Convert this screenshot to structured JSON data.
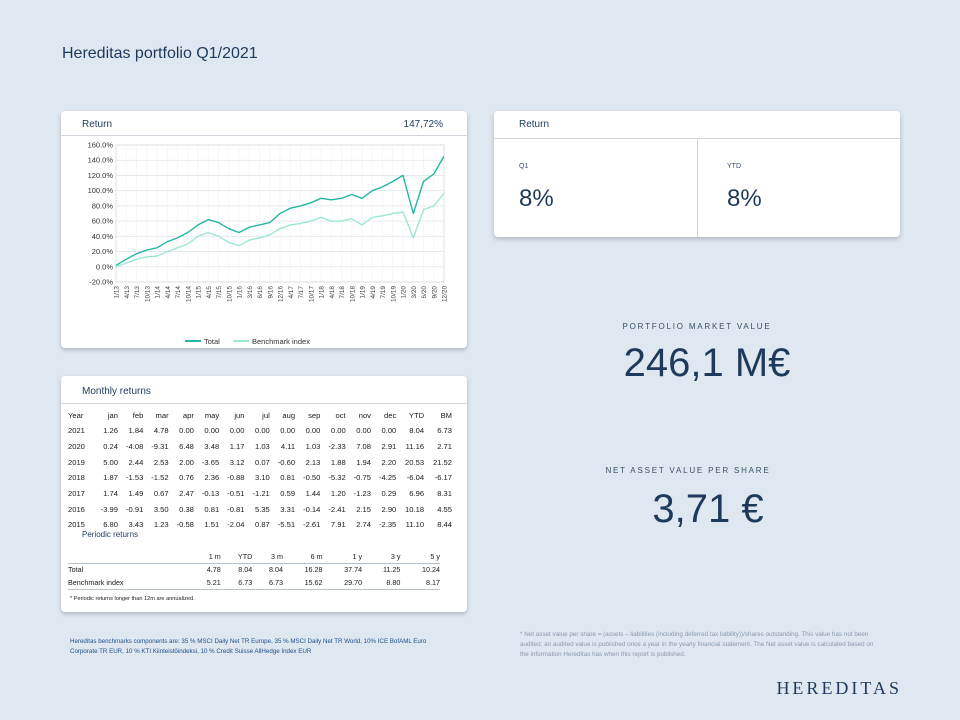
{
  "page": {
    "title": "Hereditas portfolio Q1/2021"
  },
  "return_chart_card": {
    "label": "Return",
    "total_value": "147,72%",
    "legend": {
      "total": "Total",
      "benchmark": "Benchmark index"
    },
    "colors": {
      "total": "#26b5a0",
      "benchmark": "#9ee6d4"
    }
  },
  "chart_data": {
    "type": "line",
    "x": [
      "1/13",
      "4/13",
      "7/13",
      "10/13",
      "1/14",
      "4/14",
      "7/14",
      "10/14",
      "1/15",
      "4/15",
      "7/15",
      "10/15",
      "1/16",
      "3/16",
      "6/16",
      "9/16",
      "12/16",
      "4/17",
      "7/17",
      "10/17",
      "1/18",
      "4/18",
      "7/18",
      "10/18",
      "1/19",
      "4/19",
      "7/19",
      "10/19",
      "1/20",
      "3/20",
      "6/20",
      "9/20",
      "12/20"
    ],
    "series": [
      {
        "name": "Total",
        "values": [
          2,
          10,
          17,
          22,
          25,
          33,
          38,
          45,
          55,
          62,
          58,
          50,
          45,
          52,
          55,
          58,
          70,
          77,
          80,
          84,
          90,
          88,
          90,
          95,
          90,
          100,
          105,
          112,
          120,
          70,
          112,
          122,
          145
        ]
      },
      {
        "name": "Benchmark index",
        "values": [
          0,
          5,
          10,
          13,
          14,
          20,
          25,
          30,
          40,
          45,
          40,
          32,
          28,
          35,
          38,
          42,
          50,
          55,
          57,
          60,
          65,
          60,
          60,
          63,
          55,
          65,
          67,
          70,
          72,
          38,
          75,
          80,
          97
        ]
      }
    ],
    "ylim": [
      -20,
      160
    ],
    "yticks": [
      "-20.0%",
      "0.0%",
      "20.0%",
      "40.0%",
      "60.0%",
      "80.0%",
      "100.0%",
      "120.0%",
      "140.0%",
      "160.0%"
    ],
    "grid": true,
    "legend_position": "bottom-center"
  },
  "return_summary": {
    "label": "Return",
    "q1_label": "Q1",
    "q1_value": "8%",
    "ytd_label": "YTD",
    "ytd_value": "8%"
  },
  "market_value": {
    "label": "PORTFOLIO MARKET VALUE",
    "value": "246,1 M€"
  },
  "nav_per_share": {
    "label": "NET ASSET VALUE PER SHARE",
    "value": "3,71 €"
  },
  "monthly_returns": {
    "label": "Monthly returns",
    "headers": [
      "Year",
      "jan",
      "feb",
      "mar",
      "apr",
      "may",
      "jun",
      "jul",
      "aug",
      "sep",
      "oct",
      "nov",
      "dec",
      "YTD",
      "BM"
    ],
    "rows": [
      [
        "2021",
        "1.26",
        "1.84",
        "4.78",
        "0.00",
        "0.00",
        "0.00",
        "0.00",
        "0.00",
        "0.00",
        "0.00",
        "0.00",
        "0.00",
        "8.04",
        "6.73"
      ],
      [
        "2020",
        "0.24",
        "-4.08",
        "-9.31",
        "6.48",
        "3.48",
        "1.17",
        "1.03",
        "4.11",
        "1.03",
        "-2.33",
        "7.08",
        "2.91",
        "11.16",
        "2.71"
      ],
      [
        "2019",
        "5.00",
        "2.44",
        "2.53",
        "2.00",
        "-3.65",
        "3.12",
        "0.07",
        "-0.60",
        "2.13",
        "1.88",
        "1.94",
        "2.20",
        "20.53",
        "21.52"
      ],
      [
        "2018",
        "1.87",
        "-1.53",
        "-1.52",
        "0.76",
        "2.36",
        "-0.88",
        "3.10",
        "0.81",
        "-0.50",
        "-5.32",
        "-0.75",
        "-4.25",
        "-6.04",
        "-6.17"
      ],
      [
        "2017",
        "1.74",
        "1.49",
        "0.67",
        "2.47",
        "-0.13",
        "-0.51",
        "-1.21",
        "0.59",
        "1.44",
        "1.20",
        "-1.23",
        "0.29",
        "6.96",
        "8.31"
      ],
      [
        "2016",
        "-3.99",
        "-0.91",
        "3.50",
        "0.38",
        "0.81",
        "-0.81",
        "5.35",
        "3.31",
        "-0.14",
        "-2.41",
        "2.15",
        "2.90",
        "10.18",
        "4.55"
      ],
      [
        "2015",
        "6.80",
        "3.43",
        "1.23",
        "-0.58",
        "1.51",
        "-2.04",
        "0.87",
        "-5.51",
        "-2.61",
        "7.91",
        "2.74",
        "-2.35",
        "11.10",
        "8.44"
      ]
    ]
  },
  "periodic_returns": {
    "label": "Periodic returns",
    "headers": [
      "",
      "1 m",
      "YTD",
      "3 m",
      "6 m",
      "1 y",
      "3 y",
      "5 y"
    ],
    "rows": [
      [
        "Total",
        "4.78",
        "8.04",
        "8.04",
        "16.28",
        "37.74",
        "11.25",
        "10.24"
      ],
      [
        "Benchmark index",
        "5.21",
        "6.73",
        "6.73",
        "15.62",
        "29.70",
        "8.80",
        "8.17"
      ]
    ],
    "note": "* Periodic returns longer than 12m are annualized."
  },
  "benchmark_note": "Hereditas benchmarks components are: 35 % MSCI Daily Net TR Europe, 35 % MSCI Daily Net TR World, 10% ICE BofAML Euro Corporate TR EUR, 10 % KTI Kiinteistöindeksi, 10 % Credit Suisse AllHedge Index EUR",
  "nav_footnote": "* Net asset value per share = (assets – liabilities (including deferred tax liability))/shares outstanding. This value has not been audited; an audited value is published once a year in the yearly financial statement. The Net asset value is calculated based on the information Hereditas has when this report is published.",
  "brand": {
    "logo_text": "HEREDITAS"
  }
}
